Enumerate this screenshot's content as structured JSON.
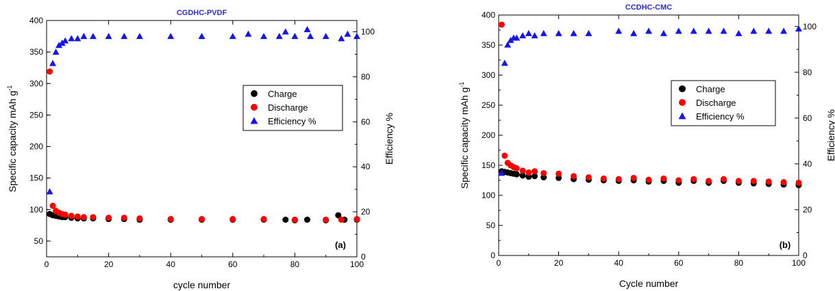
{
  "chart_data": [
    {
      "type": "scatter",
      "panel_label": "(a)",
      "title": "CGDHC-PVDF",
      "title_color": "#2a2ae0",
      "xlabel": "cycle number",
      "ylabel": "Specific capacity mAh g",
      "ylabel_sup": "-1",
      "y2label": "Efficiency %",
      "xlim": [
        0,
        100
      ],
      "ylim": [
        25,
        400
      ],
      "y2lim": [
        0,
        105
      ],
      "xticks": [
        "0",
        "20",
        "40",
        "60",
        "80",
        "100"
      ],
      "yticks": [
        "50",
        "100",
        "150",
        "200",
        "250",
        "300",
        "350",
        "400"
      ],
      "y2ticks": [
        "0",
        "20",
        "40",
        "60",
        "80",
        "100"
      ],
      "legend": [
        "Charge",
        "Discharge",
        "Efficiency %"
      ],
      "legend_position": "center-right",
      "series": [
        {
          "name": "Charge",
          "axis": "left",
          "marker": "circle",
          "color": "#000000",
          "x": [
            1,
            2,
            3,
            4,
            5,
            6,
            8,
            10,
            12,
            15,
            20,
            25,
            30,
            40,
            50,
            60,
            70,
            77,
            80,
            84,
            90,
            94,
            96,
            100
          ],
          "values": [
            93,
            91,
            90,
            89,
            88,
            88,
            87,
            86,
            86,
            86,
            85,
            85,
            84,
            84,
            84,
            84,
            84,
            84,
            83,
            84,
            83,
            91,
            84,
            84
          ]
        },
        {
          "name": "Discharge",
          "axis": "left",
          "marker": "circle",
          "color": "#ff0000",
          "x": [
            1,
            2,
            3,
            4,
            5,
            6,
            8,
            10,
            12,
            15,
            20,
            25,
            30,
            40,
            50,
            60,
            70,
            80,
            90,
            95,
            100
          ],
          "values": [
            319,
            106,
            98,
            95,
            93,
            92,
            90,
            89,
            88,
            88,
            87,
            87,
            86,
            85,
            85,
            85,
            85,
            84,
            84,
            84,
            85
          ]
        },
        {
          "name": "Efficiency %",
          "axis": "right",
          "marker": "triangle",
          "color": "#1515ee",
          "x": [
            1,
            2,
            3,
            4,
            5,
            6,
            8,
            10,
            12,
            15,
            20,
            25,
            30,
            40,
            50,
            60,
            65,
            70,
            75,
            77,
            80,
            84,
            85,
            90,
            95,
            97,
            100
          ],
          "values": [
            29,
            86,
            91,
            94,
            95,
            96,
            97,
            97,
            98,
            98,
            98,
            98,
            98,
            98,
            98,
            98,
            99,
            98,
            98,
            100,
            98,
            101,
            98,
            98,
            97,
            99,
            98
          ]
        }
      ]
    },
    {
      "type": "scatter",
      "panel_label": "(b)",
      "title": "CCDHC-CMC",
      "title_color": "#2a2ae0",
      "xlabel": "Cycle number",
      "ylabel": "Specific capacity mAh g",
      "ylabel_sup": "-1",
      "y2label": "Efficiency %",
      "xlim": [
        0,
        100
      ],
      "ylim": [
        0,
        400
      ],
      "y2lim": [
        0,
        105
      ],
      "xticks": [
        "0",
        "20",
        "40",
        "60",
        "80",
        "100"
      ],
      "yticks": [
        "0",
        "50",
        "100",
        "150",
        "200",
        "250",
        "300",
        "350",
        "400"
      ],
      "y2ticks": [
        "0",
        "20",
        "40",
        "60",
        "80",
        "100"
      ],
      "legend": [
        "Charge",
        "Discharge",
        "Efficiency %"
      ],
      "legend_position": "upper-right",
      "series": [
        {
          "name": "Charge",
          "axis": "left",
          "marker": "circle",
          "color": "#000000",
          "x": [
            1,
            2,
            3,
            4,
            5,
            6,
            8,
            10,
            12,
            15,
            20,
            25,
            30,
            35,
            40,
            45,
            50,
            55,
            60,
            65,
            70,
            75,
            80,
            85,
            90,
            95,
            100
          ],
          "values": [
            140,
            139,
            138,
            137,
            136,
            135,
            133,
            131,
            132,
            130,
            129,
            127,
            126,
            125,
            124,
            125,
            123,
            124,
            121,
            124,
            121,
            124,
            121,
            120,
            119,
            118,
            117
          ]
        },
        {
          "name": "Discharge",
          "axis": "left",
          "marker": "circle",
          "color": "#ff0000",
          "x": [
            1,
            2,
            3,
            4,
            5,
            6,
            8,
            10,
            12,
            15,
            20,
            25,
            30,
            35,
            40,
            45,
            50,
            55,
            60,
            65,
            70,
            75,
            80,
            85,
            90,
            95,
            100
          ],
          "values": [
            384,
            166,
            154,
            150,
            147,
            145,
            141,
            138,
            140,
            137,
            136,
            132,
            130,
            128,
            127,
            129,
            126,
            128,
            125,
            127,
            124,
            127,
            124,
            124,
            123,
            122,
            121
          ]
        },
        {
          "name": "Efficiency %",
          "axis": "right",
          "marker": "triangle",
          "color": "#1515ee",
          "x": [
            1,
            2,
            3,
            4,
            5,
            6,
            8,
            10,
            12,
            15,
            20,
            25,
            30,
            40,
            45,
            50,
            55,
            60,
            65,
            70,
            75,
            80,
            85,
            90,
            95,
            100
          ],
          "values": [
            36,
            84,
            92,
            94,
            95,
            95,
            96,
            97,
            96,
            97,
            97,
            97,
            97,
            98,
            97,
            98,
            97,
            98,
            98,
            98,
            98,
            97,
            98,
            98,
            98,
            99
          ]
        }
      ]
    }
  ]
}
